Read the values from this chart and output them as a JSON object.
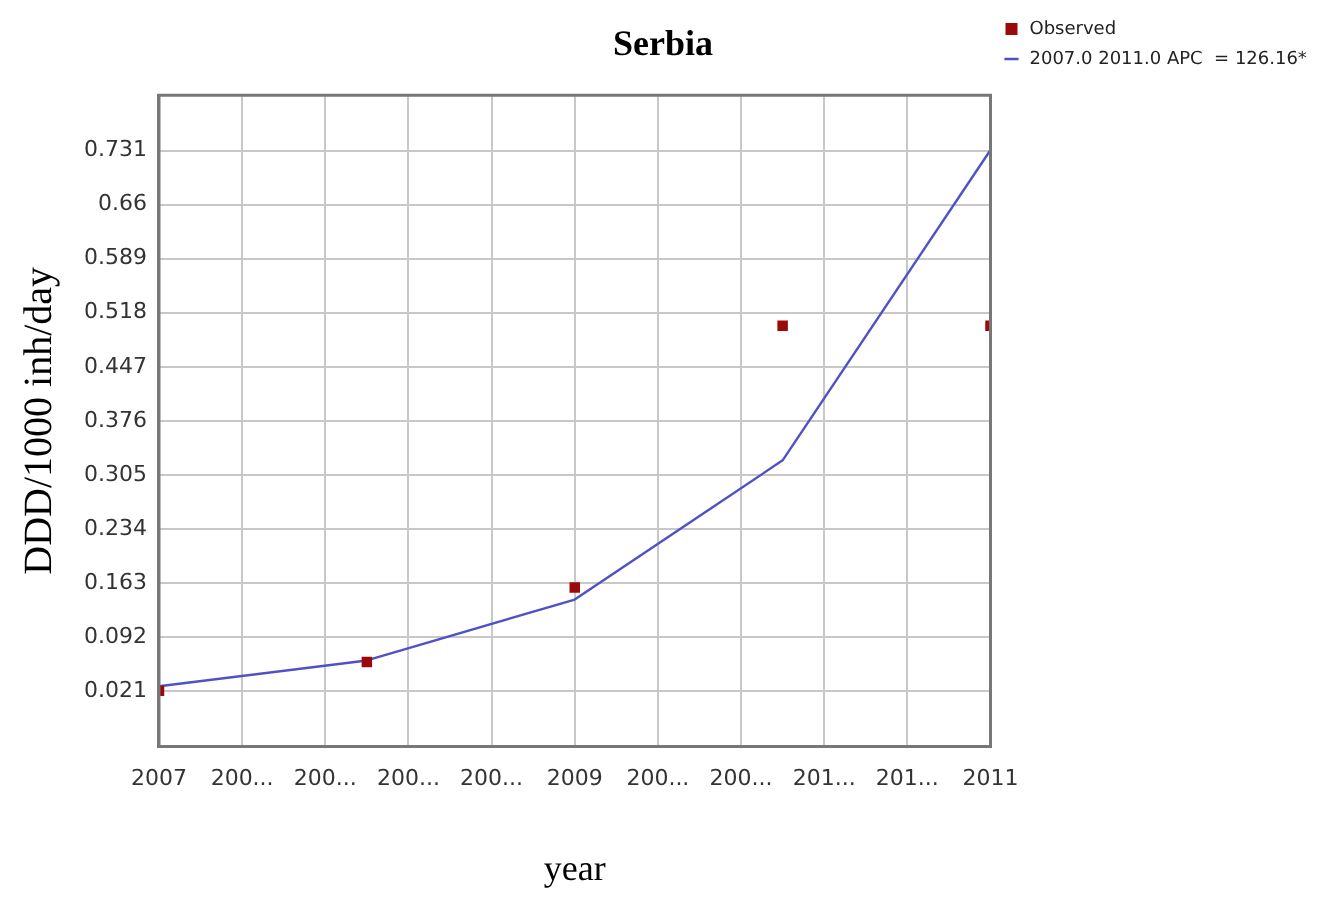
{
  "chart_data": {
    "type": "scatter",
    "title": "Serbia",
    "xlabel": "year",
    "ylabel": "DDD/1000 inh/day",
    "xlim": [
      2007,
      2011
    ],
    "xticks": [
      2007,
      {
        "value": 2007.4,
        "label": "200..."
      },
      {
        "value": 2007.8,
        "label": "200..."
      },
      {
        "value": 2008.2,
        "label": "200..."
      },
      {
        "value": 2008.6,
        "label": "200..."
      },
      2009,
      {
        "value": 2009.4,
        "label": "200..."
      },
      {
        "value": 2009.8,
        "label": "200..."
      },
      {
        "value": 2010.2,
        "label": "201..."
      },
      {
        "value": 2010.6,
        "label": "201..."
      },
      2011
    ],
    "ylim": [
      -0.052,
      0.804
    ],
    "yticks": [
      0.021,
      0.092,
      0.163,
      0.234,
      0.305,
      0.376,
      0.447,
      0.518,
      0.589,
      0.66,
      0.731
    ],
    "x": [
      2007,
      2008,
      2009,
      2010,
      2011
    ],
    "series": [
      {
        "name": "Observed",
        "type": "scatter",
        "marker": "square",
        "color": "#9b0a0a",
        "values": [
          0.021,
          0.059,
          0.157,
          0.501,
          0.501
        ]
      },
      {
        "name": "2007.0 2011.0 APC  = 126.16*",
        "type": "line",
        "marker": "none",
        "line_style": "solid",
        "color": "#5050c8",
        "values": [
          0.027,
          0.061,
          0.141,
          0.324,
          0.732
        ]
      }
    ],
    "grid": true,
    "legend": "top right"
  }
}
